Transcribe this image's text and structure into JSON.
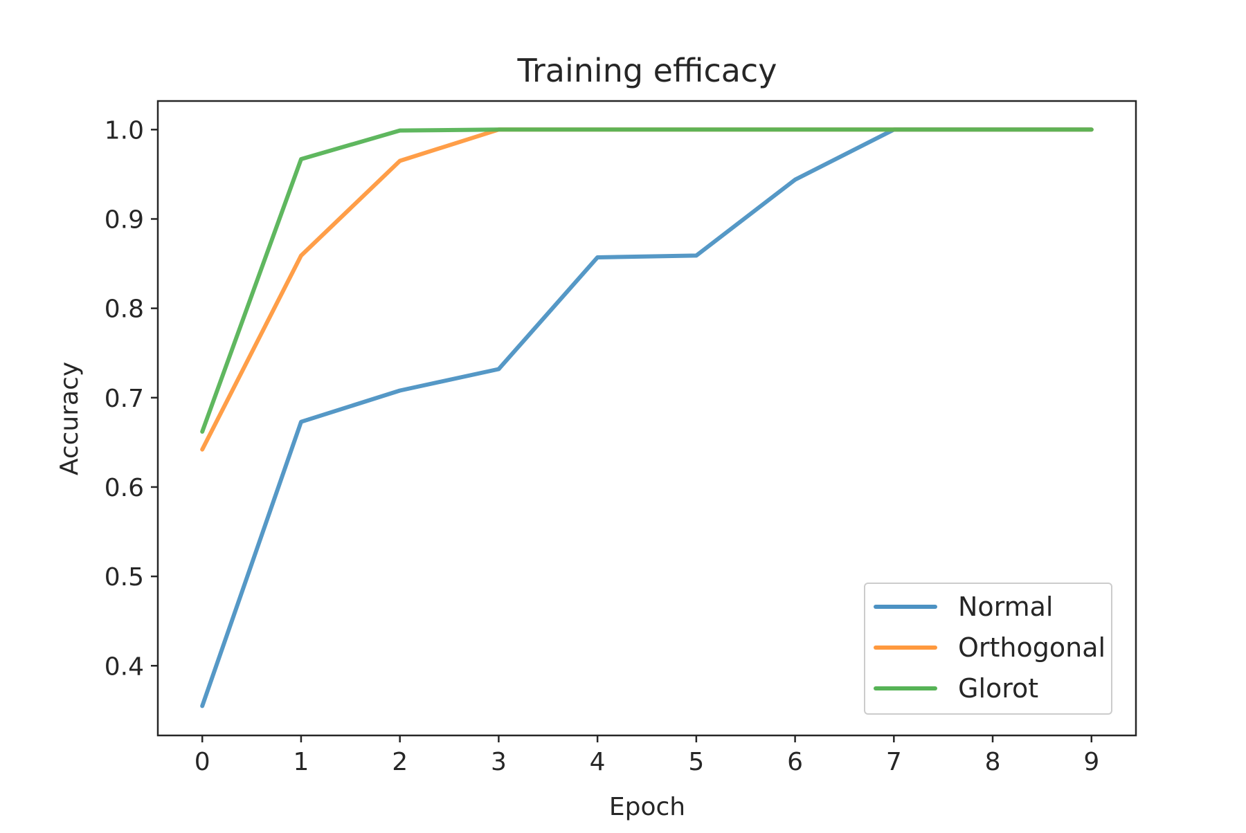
{
  "chart_data": {
    "type": "line",
    "title": "Training efficacy",
    "xlabel": "Epoch",
    "ylabel": "Accuracy",
    "x": [
      0,
      1,
      2,
      3,
      4,
      5,
      6,
      7,
      8,
      9
    ],
    "xlim": [
      -0.45,
      9.45
    ],
    "ylim": [
      0.322,
      1.032
    ],
    "xticks": [
      "0",
      "1",
      "2",
      "3",
      "4",
      "5",
      "6",
      "7",
      "8",
      "9"
    ],
    "yticks": [
      "0.4",
      "0.5",
      "0.6",
      "0.7",
      "0.8",
      "0.9",
      "1.0"
    ],
    "grid": false,
    "legend_position": "lower right",
    "series": [
      {
        "name": "Normal",
        "color": "#4c92c3",
        "values": [
          0.355,
          0.673,
          0.708,
          0.732,
          0.857,
          0.859,
          0.944,
          1.0,
          1.0,
          1.0
        ]
      },
      {
        "name": "Orthogonal",
        "color": "#ff993e",
        "values": [
          0.642,
          0.859,
          0.965,
          1.0,
          1.0,
          1.0,
          1.0,
          1.0,
          1.0,
          1.0
        ]
      },
      {
        "name": "Glorot",
        "color": "#56b356",
        "values": [
          0.662,
          0.967,
          0.999,
          1.0,
          1.0,
          1.0,
          1.0,
          1.0,
          1.0,
          1.0
        ]
      }
    ]
  }
}
